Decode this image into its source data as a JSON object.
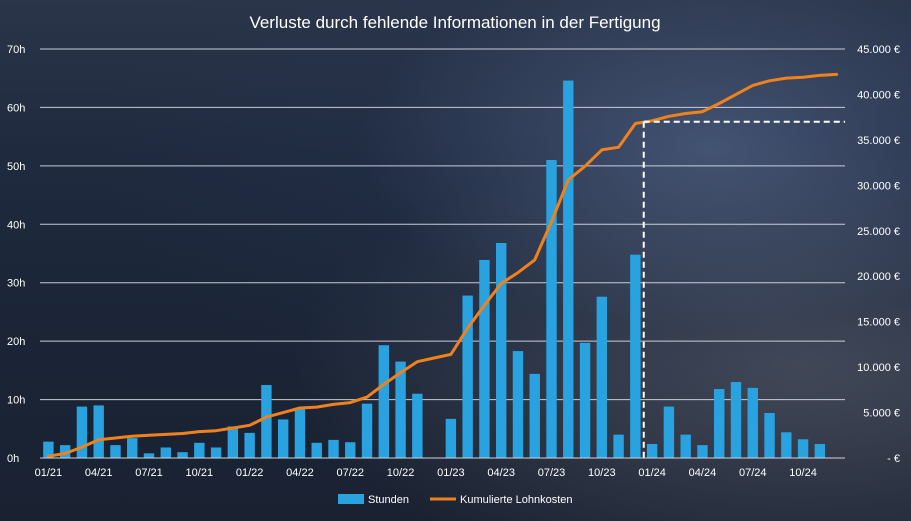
{
  "chart_data": {
    "type": "bar",
    "title": "Verluste durch fehlende Informationen in der Fertigung",
    "categories": [
      "01/21",
      "02/21",
      "03/21",
      "04/21",
      "05/21",
      "06/21",
      "07/21",
      "08/21",
      "09/21",
      "10/21",
      "11/21",
      "12/21",
      "01/22",
      "02/22",
      "03/22",
      "04/22",
      "05/22",
      "06/22",
      "07/22",
      "08/22",
      "09/22",
      "10/22",
      "11/22",
      "12/22",
      "01/23",
      "02/23",
      "03/23",
      "04/23",
      "05/23",
      "06/23",
      "07/23",
      "08/23",
      "09/23",
      "10/23",
      "11/23",
      "12/23",
      "01/24",
      "02/24",
      "03/24",
      "04/24",
      "05/24",
      "06/24",
      "07/24",
      "08/24",
      "09/24",
      "10/24",
      "11/24",
      "12/24"
    ],
    "x_tick_labels": [
      "01/21",
      "04/21",
      "07/21",
      "10/21",
      "01/22",
      "04/22",
      "07/22",
      "10/22",
      "01/23",
      "04/23",
      "07/23",
      "10/23",
      "01/24",
      "04/24",
      "07/24",
      "10/24"
    ],
    "series": [
      {
        "name": "Stunden",
        "type": "bar",
        "axis": "left",
        "color": "#29a3e0",
        "values": [
          2.8,
          2.2,
          8.8,
          9.0,
          2.2,
          3.4,
          0.8,
          1.8,
          1.0,
          2.6,
          1.8,
          5.4,
          4.3,
          12.5,
          6.6,
          8.6,
          2.6,
          3.1,
          2.7,
          9.3,
          19.3,
          16.5,
          11.0,
          0,
          6.7,
          27.8,
          33.9,
          36.8,
          18.3,
          14.4,
          51.0,
          64.6,
          19.7,
          27.6,
          4.0,
          34.8,
          2.4,
          8.8,
          4.0,
          2.2,
          11.8,
          13.0,
          12.0,
          7.7,
          4.4,
          3.2,
          2.4,
          0
        ]
      },
      {
        "name": "Kumulierte Lohnkosten",
        "type": "line",
        "axis": "right",
        "color": "#f0821e",
        "values": [
          200,
          500,
          1200,
          2000,
          2200,
          2400,
          2500,
          2600,
          2700,
          2900,
          3000,
          3300,
          3600,
          4500,
          5000,
          5500,
          5600,
          5900,
          6100,
          6700,
          8100,
          9400,
          10600,
          11000,
          11400,
          14300,
          16800,
          19200,
          20400,
          21800,
          26000,
          30600,
          32100,
          33900,
          34200,
          36800,
          37100,
          37600,
          37900,
          38100,
          39000,
          40000,
          41000,
          41500,
          41800,
          41900,
          42100,
          42200
        ]
      }
    ],
    "y_left": {
      "ylim": [
        0,
        70
      ],
      "ticks": [
        0,
        10,
        20,
        30,
        40,
        50,
        60,
        70
      ],
      "tick_labels": [
        "0h",
        "10h",
        "20h",
        "30h",
        "40h",
        "50h",
        "60h",
        "70h"
      ]
    },
    "y_right": {
      "ylim": [
        0,
        45000
      ],
      "ticks": [
        0,
        5000,
        10000,
        15000,
        20000,
        25000,
        30000,
        35000,
        40000,
        45000
      ],
      "tick_labels": [
        "-  €",
        "5.000 €",
        "10.000 €",
        "15.000 €",
        "20.000 €",
        "25.000 €",
        "30.000 €",
        "35.000 €",
        "40.000 €",
        "45.000 €"
      ]
    },
    "reference_marker": {
      "x_category": "12/23",
      "y_value": 37000,
      "style": "dashed",
      "color": "#ffffff"
    },
    "grid": true,
    "legend": {
      "position": "bottom",
      "entries": [
        "Stunden",
        "Kumulierte Lohnkosten"
      ]
    },
    "colors": {
      "text": "#ffffff",
      "grid": "#d9dde4",
      "axis": "#d0d4da"
    }
  }
}
